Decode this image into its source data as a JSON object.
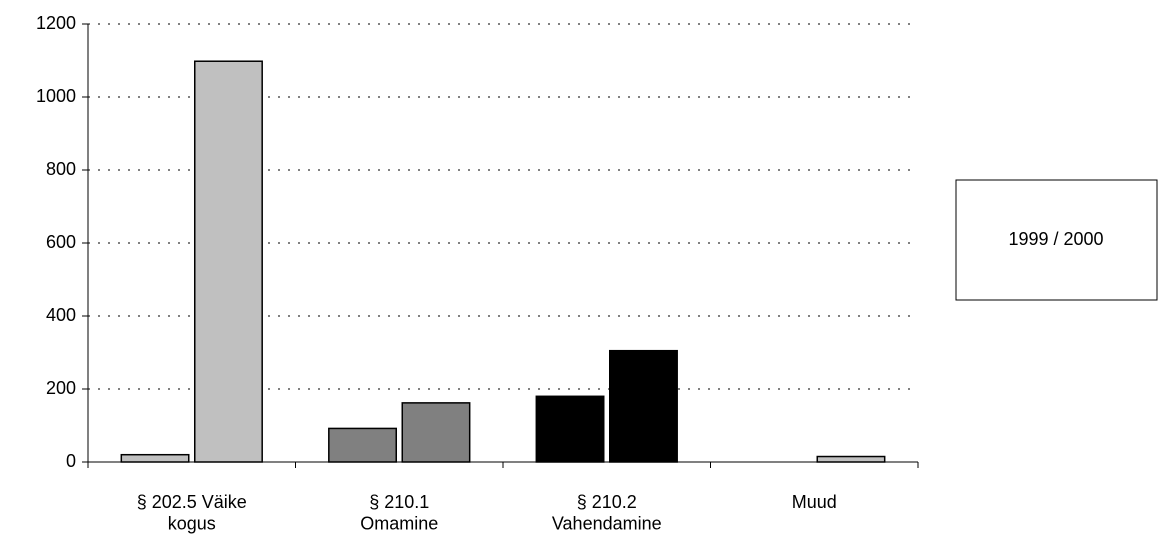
{
  "chart_data": {
    "type": "bar",
    "categories": [
      "§ 202.5 Väike\nkogus",
      "§ 210.1\nOmamine",
      "§ 210.2\nVahendamine",
      "Muud"
    ],
    "colors": [
      "#c0c0c0",
      "#808080",
      "#000000",
      "#c0c0c0"
    ],
    "series": [
      {
        "values": [
          20,
          92,
          180,
          0
        ]
      },
      {
        "values": [
          1098,
          162,
          305,
          15
        ]
      }
    ],
    "legend": "1999 / 2000",
    "legend_position": "right",
    "ylim": [
      0,
      1200
    ],
    "yticks": [
      0,
      200,
      400,
      600,
      800,
      1000,
      1200
    ],
    "grid": true
  }
}
